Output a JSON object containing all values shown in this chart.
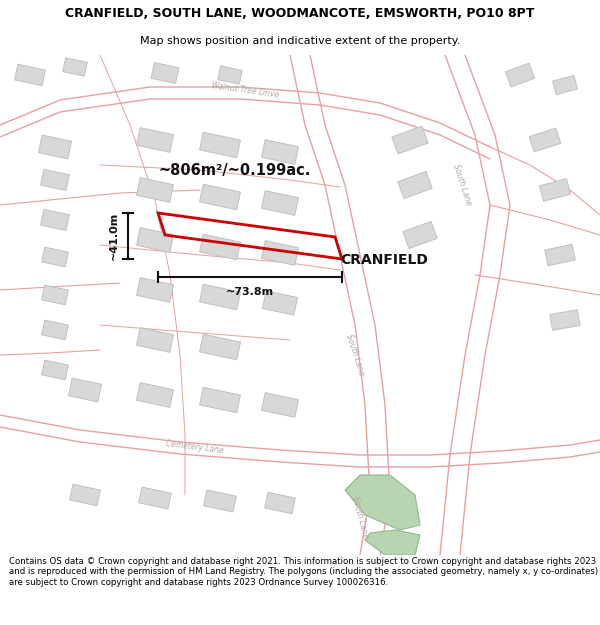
{
  "title_line1": "CRANFIELD, SOUTH LANE, WOODMANCOTE, EMSWORTH, PO10 8PT",
  "title_line2": "Map shows position and indicative extent of the property.",
  "footer_text": "Contains OS data © Crown copyright and database right 2021. This information is subject to Crown copyright and database rights 2023 and is reproduced with the permission of HM Land Registry. The polygons (including the associated geometry, namely x, y co-ordinates) are subject to Crown copyright and database rights 2023 Ordnance Survey 100026316.",
  "map_bg": "#ffffff",
  "road_line_color": "#e8a0a0",
  "building_color": "#d8d8d8",
  "building_outline": "#c0c0c0",
  "property_edge_color": "#cc0000",
  "road_text_color": "#aaaaaa",
  "annotation_color": "#111111",
  "green_color": "#b8d4b0",
  "title_fontsize": 9.0,
  "subtitle_fontsize": 8.0,
  "footer_fontsize": 6.2
}
